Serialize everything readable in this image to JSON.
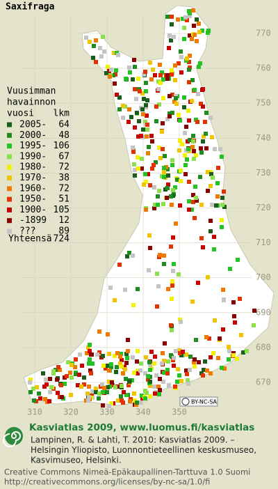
{
  "title": "Saxifraga",
  "legend": {
    "header": [
      "Vuusimman",
      "havainnon",
      "vuosi"
    ],
    "count_header": "lkm",
    "items": [
      {
        "label": "2005-",
        "count": 64,
        "color": "#1b5e1b"
      },
      {
        "label": "2000-",
        "count": 48,
        "color": "#1e8c1e"
      },
      {
        "label": "1995-",
        "count": 106,
        "color": "#22c322"
      },
      {
        "label": "1990-",
        "count": 67,
        "color": "#8ee04a"
      },
      {
        "label": "1980-",
        "count": 72,
        "color": "#f2f200"
      },
      {
        "label": "1970-",
        "count": 38,
        "color": "#f0c400"
      },
      {
        "label": "1960-",
        "count": 72,
        "color": "#f07a00"
      },
      {
        "label": "1950-",
        "count": 51,
        "color": "#e23200"
      },
      {
        "label": "1900-",
        "count": 105,
        "color": "#c80000"
      },
      {
        "label": "-1899",
        "count": 12,
        "color": "#8c0000"
      },
      {
        "label": "???",
        "count": 89,
        "color": "#c4c4c4"
      }
    ],
    "total_label": "Yhteensä",
    "total": 724
  },
  "grid": {
    "y_labels": [
      770,
      760,
      750,
      740,
      730,
      720,
      710,
      700,
      690,
      680,
      670
    ],
    "x_labels": [
      310,
      320,
      330,
      340,
      350
    ]
  },
  "badge": "BY-NC-SA",
  "footer": {
    "heading": "Kasviatlas 2009, www.luomus.fi/kasviatlas",
    "citation": [
      "Lampinen, R. & Lahti, T. 2010: Kasviatlas 2009. –",
      "Helsingin Yliopisto, Luonnontieteellinen keskusmuseo,",
      "Kasvimuseo, Helsinki."
    ],
    "license": [
      "Creative Commons Nimeä-Epäkaupallinen-Tarttuva 1.0 Suomi",
      "http://creativecommons.org/licenses/by-nc-sa/1.0/fi"
    ]
  }
}
